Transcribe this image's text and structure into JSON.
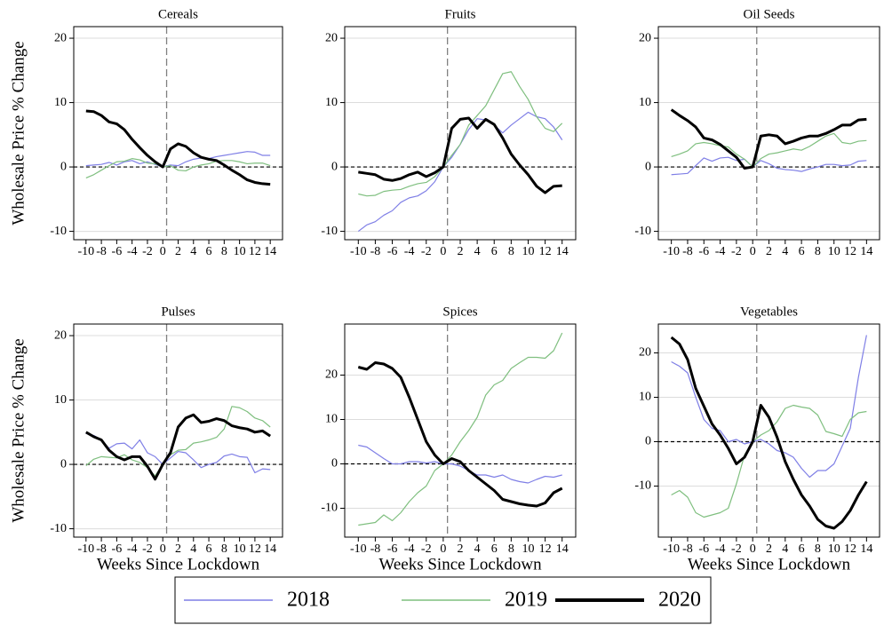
{
  "chart_data": [
    {
      "type": "line",
      "title": "Cereals",
      "ylabel": "Wholesale Price % Change",
      "x": [
        -10,
        -9,
        -8,
        -7,
        -6,
        -5,
        -4,
        -3,
        -2,
        -1,
        0,
        1,
        2,
        3,
        4,
        5,
        6,
        7,
        8,
        9,
        10,
        11,
        12,
        13,
        14
      ],
      "series": [
        {
          "name": "2018",
          "color": "#7f7fe6",
          "values": [
            0.2,
            0.3,
            0.4,
            0.7,
            0.3,
            0.8,
            1.0,
            0.5,
            0.8,
            0.4,
            0,
            0.3,
            0.2,
            0.8,
            1.2,
            1.4,
            1.3,
            1.6,
            1.8,
            2.0,
            2.2,
            2.4,
            2.3,
            1.8,
            1.8
          ]
        },
        {
          "name": "2019",
          "color": "#7fbf7f",
          "values": [
            -1.7,
            -1.2,
            -0.5,
            0.2,
            0.8,
            0.9,
            1.3,
            1.1,
            0.6,
            0.5,
            0,
            0.2,
            -0.5,
            -0.6,
            0,
            0.3,
            0.5,
            0.9,
            1.0,
            1.0,
            0.8,
            0.5,
            0.6,
            0.6,
            0.2
          ]
        },
        {
          "name": "2020",
          "color": "#000000",
          "values": [
            8.7,
            8.6,
            8.0,
            7.0,
            6.7,
            5.8,
            4.3,
            3.0,
            1.8,
            0.8,
            0,
            2.8,
            3.6,
            3.2,
            2.2,
            1.5,
            1.2,
            1.0,
            0.3,
            -0.5,
            -1.2,
            -2.0,
            -2.4,
            -2.6,
            -2.7
          ]
        }
      ],
      "xlim": [
        -11.6,
        15.6
      ],
      "ylim": [
        -11.3,
        21.8
      ],
      "xticks": [
        -10,
        -8,
        -6,
        -4,
        -2,
        0,
        2,
        4,
        6,
        8,
        10,
        12,
        14
      ],
      "yticks": [
        -10,
        0,
        10,
        20
      ],
      "grid": true
    },
    {
      "type": "line",
      "title": "Fruits",
      "x": [
        -10,
        -9,
        -8,
        -7,
        -6,
        -5,
        -4,
        -3,
        -2,
        -1,
        0,
        1,
        2,
        3,
        4,
        5,
        6,
        7,
        8,
        9,
        10,
        11,
        12,
        13,
        14
      ],
      "series": [
        {
          "name": "2018",
          "color": "#7f7fe6",
          "values": [
            -10,
            -9,
            -8.5,
            -7.5,
            -6.8,
            -5.5,
            -4.8,
            -4.5,
            -3.7,
            -2.3,
            0,
            1.5,
            3.5,
            5.8,
            7.5,
            7.3,
            6.5,
            5.3,
            6.5,
            7.5,
            8.5,
            7.8,
            7.5,
            6.2,
            4.2
          ]
        },
        {
          "name": "2019",
          "color": "#7fbf7f",
          "values": [
            -4.2,
            -4.5,
            -4.4,
            -3.8,
            -3.6,
            -3.5,
            -3.0,
            -2.6,
            -2.4,
            -1.5,
            0,
            1.8,
            3.5,
            6.5,
            8.0,
            9.5,
            12.0,
            14.5,
            14.8,
            12.5,
            10.5,
            7.8,
            6.0,
            5.5,
            6.8
          ]
        },
        {
          "name": "2020",
          "color": "#000000",
          "values": [
            -0.8,
            -1.0,
            -1.2,
            -1.9,
            -2.1,
            -1.8,
            -1.2,
            -0.8,
            -1.5,
            -0.9,
            0,
            6.0,
            7.4,
            7.6,
            6.0,
            7.4,
            6.6,
            4.5,
            2.0,
            0.3,
            -1.2,
            -3.0,
            -4.0,
            -3.0,
            -2.9
          ]
        }
      ],
      "xlim": [
        -11.6,
        15.6
      ],
      "ylim": [
        -11.3,
        21.8
      ],
      "xticks": [
        -10,
        -8,
        -6,
        -4,
        -2,
        0,
        2,
        4,
        6,
        8,
        10,
        12,
        14
      ],
      "yticks": [
        -10,
        0,
        10,
        20
      ],
      "grid": true
    },
    {
      "type": "line",
      "title": "Oil Seeds",
      "x": [
        -10,
        -9,
        -8,
        -7,
        -6,
        -5,
        -4,
        -3,
        -2,
        -1,
        0,
        1,
        2,
        3,
        4,
        5,
        6,
        7,
        8,
        9,
        10,
        11,
        12,
        13,
        14
      ],
      "series": [
        {
          "name": "2018",
          "color": "#7f7fe6",
          "values": [
            -1.2,
            -1.1,
            -1.0,
            0.2,
            1.4,
            0.9,
            1.4,
            1.5,
            1.0,
            1.2,
            0,
            1.0,
            0.5,
            -0.2,
            -0.4,
            -0.5,
            -0.7,
            -0.3,
            0.0,
            0.4,
            0.4,
            0.2,
            0.3,
            0.9,
            1.0
          ]
        },
        {
          "name": "2019",
          "color": "#7fbf7f",
          "values": [
            1.6,
            2.0,
            2.5,
            3.6,
            3.8,
            3.6,
            3.3,
            3.1,
            2.0,
            1.2,
            0,
            1.3,
            2.0,
            2.2,
            2.5,
            2.8,
            2.6,
            3.2,
            4.0,
            4.8,
            5.2,
            3.8,
            3.6,
            4.0,
            4.1
          ]
        },
        {
          "name": "2020",
          "color": "#000000",
          "values": [
            8.9,
            8.0,
            7.2,
            6.2,
            4.5,
            4.2,
            3.5,
            2.5,
            1.5,
            -0.2,
            0,
            4.8,
            5.0,
            4.8,
            3.6,
            4.0,
            4.5,
            4.8,
            4.8,
            5.2,
            5.8,
            6.5,
            6.5,
            7.3,
            7.4
          ]
        }
      ],
      "xlim": [
        -11.6,
        15.6
      ],
      "ylim": [
        -11.3,
        21.8
      ],
      "xticks": [
        -10,
        -8,
        -6,
        -4,
        -2,
        0,
        2,
        4,
        6,
        8,
        10,
        12,
        14
      ],
      "yticks": [
        -10,
        0,
        10,
        20
      ],
      "grid": true
    },
    {
      "type": "line",
      "title": "Pulses",
      "ylabel": "Wholesale Price % Change",
      "xlabel": "Weeks Since Lockdown",
      "x": [
        -10,
        -9,
        -8,
        -7,
        -6,
        -5,
        -4,
        -3,
        -2,
        -1,
        0,
        1,
        2,
        3,
        4,
        5,
        6,
        7,
        8,
        9,
        10,
        11,
        12,
        13,
        14
      ],
      "series": [
        {
          "name": "2018",
          "color": "#7f7fe6",
          "values": [
            4.8,
            4.5,
            3.8,
            2.5,
            3.2,
            3.3,
            2.4,
            3.8,
            1.8,
            1.2,
            0,
            1.0,
            2.0,
            1.8,
            0.7,
            -0.5,
            0,
            0.3,
            1.3,
            1.6,
            1.2,
            1.1,
            -1.3,
            -0.7,
            -0.8
          ]
        },
        {
          "name": "2019",
          "color": "#7fbf7f",
          "values": [
            -0.2,
            0.8,
            1.2,
            1.1,
            1.0,
            1.5,
            0.7,
            0.3,
            -0.5,
            -1.8,
            0,
            1.5,
            2.2,
            2.3,
            3.3,
            3.5,
            3.8,
            4.2,
            5.5,
            9.0,
            8.8,
            8.2,
            7.2,
            6.8,
            5.8
          ]
        },
        {
          "name": "2020",
          "color": "#000000",
          "values": [
            5.0,
            4.3,
            3.8,
            2.2,
            1.2,
            0.7,
            1.2,
            1.2,
            -0.3,
            -2.3,
            0,
            1.8,
            5.8,
            7.2,
            7.7,
            6.5,
            6.7,
            7.1,
            6.8,
            6.0,
            5.7,
            5.5,
            5.0,
            5.2,
            4.4
          ]
        }
      ],
      "xlim": [
        -11.6,
        15.6
      ],
      "ylim": [
        -11.3,
        21.8
      ],
      "xticks": [
        -10,
        -8,
        -6,
        -4,
        -2,
        0,
        2,
        4,
        6,
        8,
        10,
        12,
        14
      ],
      "yticks": [
        -10,
        0,
        10,
        20
      ],
      "grid": true
    },
    {
      "type": "line",
      "title": "Spices",
      "xlabel": "Weeks Since Lockdown",
      "x": [
        -10,
        -9,
        -8,
        -7,
        -6,
        -5,
        -4,
        -3,
        -2,
        -1,
        0,
        1,
        2,
        3,
        4,
        5,
        6,
        7,
        8,
        9,
        10,
        11,
        12,
        13,
        14
      ],
      "series": [
        {
          "name": "2018",
          "color": "#7f7fe6",
          "values": [
            4.2,
            3.8,
            2.5,
            1.2,
            0,
            0,
            0.5,
            0.5,
            0.2,
            0.5,
            0,
            0,
            -0.5,
            -1.5,
            -2.5,
            -2.5,
            -3,
            -2.5,
            -3.5,
            -4,
            -4.3,
            -3.5,
            -2.8,
            -3,
            -2.5
          ]
        },
        {
          "name": "2019",
          "color": "#7fbf7f",
          "values": [
            -13.8,
            -13.5,
            -13.2,
            -11.5,
            -12.8,
            -11,
            -8.5,
            -6.5,
            -5,
            -1.5,
            0,
            2,
            5,
            7.5,
            10.5,
            15.5,
            17.8,
            18.8,
            21.5,
            22.8,
            24,
            24,
            23.8,
            25.5,
            29.5
          ]
        },
        {
          "name": "2020",
          "color": "#000000",
          "values": [
            21.8,
            21.3,
            22.8,
            22.5,
            21.5,
            19.5,
            15,
            10,
            5,
            2,
            0,
            1.2,
            0.5,
            -1.5,
            -3,
            -4.5,
            -6,
            -8,
            -8.5,
            -9,
            -9.3,
            -9.5,
            -8.8,
            -6.5,
            -5.5
          ]
        }
      ],
      "xlim": [
        -11.6,
        15.6
      ],
      "ylim": [
        -16.5,
        31.5
      ],
      "xticks": [
        -10,
        -8,
        -6,
        -4,
        -2,
        0,
        2,
        4,
        6,
        8,
        10,
        12,
        14
      ],
      "yticks": [
        -10,
        0,
        10,
        20
      ],
      "grid": true
    },
    {
      "type": "line",
      "title": "Vegetables",
      "xlabel": "Weeks Since Lockdown",
      "x": [
        -10,
        -9,
        -8,
        -7,
        -6,
        -5,
        -4,
        -3,
        -2,
        -1,
        0,
        1,
        2,
        3,
        4,
        5,
        6,
        7,
        8,
        9,
        10,
        11,
        12,
        13,
        14
      ],
      "series": [
        {
          "name": "2018",
          "color": "#7f7fe6",
          "values": [
            18,
            17,
            15.5,
            10,
            5,
            3,
            2.5,
            0,
            0.5,
            -0.5,
            0,
            0.5,
            -0.5,
            -2,
            -2.5,
            -3.5,
            -6,
            -8,
            -6.5,
            -6.5,
            -5,
            -1,
            3,
            14.5,
            24
          ]
        },
        {
          "name": "2019",
          "color": "#7fbf7f",
          "values": [
            -12,
            -11,
            -12.5,
            -16,
            -17,
            -16.5,
            -16,
            -15,
            -9.5,
            -3,
            0,
            1.5,
            2.5,
            4.5,
            7.5,
            8.2,
            7.8,
            7.5,
            6,
            2.3,
            1.8,
            1.2,
            5,
            6.5,
            6.8
          ]
        },
        {
          "name": "2020",
          "color": "#000000",
          "values": [
            23.5,
            22,
            18.5,
            12,
            8,
            4,
            1.5,
            -1.5,
            -5,
            -3.5,
            0,
            8.2,
            5.5,
            1,
            -4.5,
            -8.5,
            -12,
            -14.5,
            -17.5,
            -19,
            -19.5,
            -18,
            -15.5,
            -12,
            -9
          ]
        }
      ],
      "xlim": [
        -11.6,
        15.6
      ],
      "ylim": [
        -21.5,
        26.5
      ],
      "xticks": [
        -10,
        -8,
        -6,
        -4,
        -2,
        0,
        2,
        4,
        6,
        8,
        10,
        12,
        14
      ],
      "yticks": [
        -10,
        0,
        10,
        20
      ],
      "grid": true
    }
  ]
}
